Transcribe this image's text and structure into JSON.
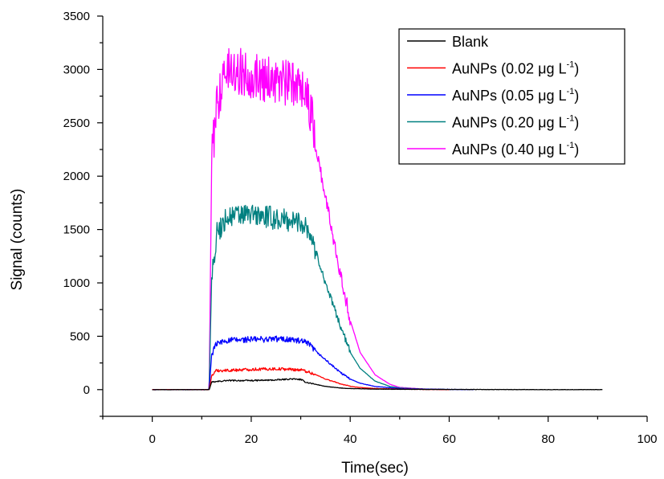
{
  "chart_data": {
    "type": "line",
    "xlabel": "Time(sec)",
    "ylabel": "Signal (counts)",
    "xlim": [
      -10,
      100
    ],
    "ylim": [
      -250,
      3500
    ],
    "xticks": [
      0,
      20,
      40,
      60,
      80,
      100
    ],
    "yticks": [
      0,
      500,
      1000,
      1500,
      2000,
      2500,
      3000,
      3500
    ],
    "grid": false,
    "legend_position": "top-right",
    "series": [
      {
        "name": "Blank",
        "color": "#000000",
        "legend": {
          "prefix": "Blank",
          "sup": "",
          "suffix": ""
        },
        "x": [
          0,
          5,
          10,
          11.5,
          12,
          15,
          20,
          25,
          28,
          30,
          31,
          33,
          35,
          38,
          40,
          45,
          50,
          60,
          70,
          80,
          91
        ],
        "y": [
          0,
          0,
          0,
          0,
          70,
          85,
          85,
          90,
          100,
          95,
          70,
          50,
          30,
          15,
          10,
          5,
          3,
          2,
          1,
          0,
          0
        ]
      },
      {
        "name": "AuNPs (0.02 μg L-1)",
        "color": "#ff0000",
        "legend": {
          "prefix": "AuNPs (0.02 ",
          "mu": "μ",
          "mid": "g L",
          "sup": "-1",
          "suffix": ")"
        },
        "x": [
          0,
          5,
          10,
          11.5,
          12,
          13,
          15,
          20,
          25,
          28,
          30,
          31,
          33,
          35,
          38,
          40,
          42,
          45,
          50,
          55,
          60
        ],
        "y": [
          0,
          0,
          0,
          0,
          130,
          180,
          180,
          190,
          195,
          190,
          185,
          175,
          140,
          100,
          55,
          30,
          20,
          10,
          5,
          2,
          0
        ]
      },
      {
        "name": "AuNPs (0.05 μg L-1)",
        "color": "#0000ff",
        "legend": {
          "prefix": "AuNPs (0.05 ",
          "mu": "μ",
          "mid": "g L",
          "sup": "-1",
          "suffix": ")"
        },
        "x": [
          0,
          5,
          10,
          11.5,
          12,
          13,
          15,
          20,
          25,
          28,
          30,
          31,
          32,
          33,
          35,
          38,
          40,
          42,
          45,
          50,
          55,
          60,
          65
        ],
        "y": [
          0,
          0,
          0,
          0,
          330,
          430,
          460,
          470,
          475,
          470,
          450,
          440,
          410,
          360,
          280,
          160,
          100,
          60,
          30,
          10,
          5,
          2,
          0
        ]
      },
      {
        "name": "AuNPs (0.20 μg L-1)",
        "color": "#008080",
        "legend": {
          "prefix": "AuNPs (0.20 ",
          "mu": "μ",
          "mid": "g L",
          "sup": "-1",
          "suffix": ")"
        },
        "x": [
          0,
          5,
          10,
          11.5,
          12,
          13,
          15,
          20,
          25,
          28,
          30,
          31,
          32,
          33,
          35,
          38,
          40,
          42,
          45,
          48,
          50,
          55,
          60
        ],
        "y": [
          0,
          0,
          0,
          0,
          1050,
          1450,
          1620,
          1640,
          1600,
          1580,
          1570,
          1550,
          1450,
          1300,
          1000,
          600,
          350,
          200,
          80,
          30,
          15,
          5,
          0
        ]
      },
      {
        "name": "AuNPs (0.40 μg L-1)",
        "color": "#ff00ff",
        "legend": {
          "prefix": "AuNPs (0.40 ",
          "mu": "μ",
          "mid": "g L",
          "sup": "-1",
          "suffix": ")"
        },
        "x": [
          0,
          5,
          10,
          11.5,
          12,
          13,
          15,
          20,
          25,
          28,
          30,
          31,
          32,
          33,
          35,
          38,
          40,
          42,
          45,
          48,
          50,
          55,
          60
        ],
        "y": [
          0,
          0,
          0,
          0,
          2100,
          2700,
          3000,
          2950,
          2900,
          2850,
          2900,
          2800,
          2600,
          2300,
          1800,
          1100,
          650,
          350,
          140,
          50,
          20,
          5,
          0
        ]
      }
    ]
  }
}
